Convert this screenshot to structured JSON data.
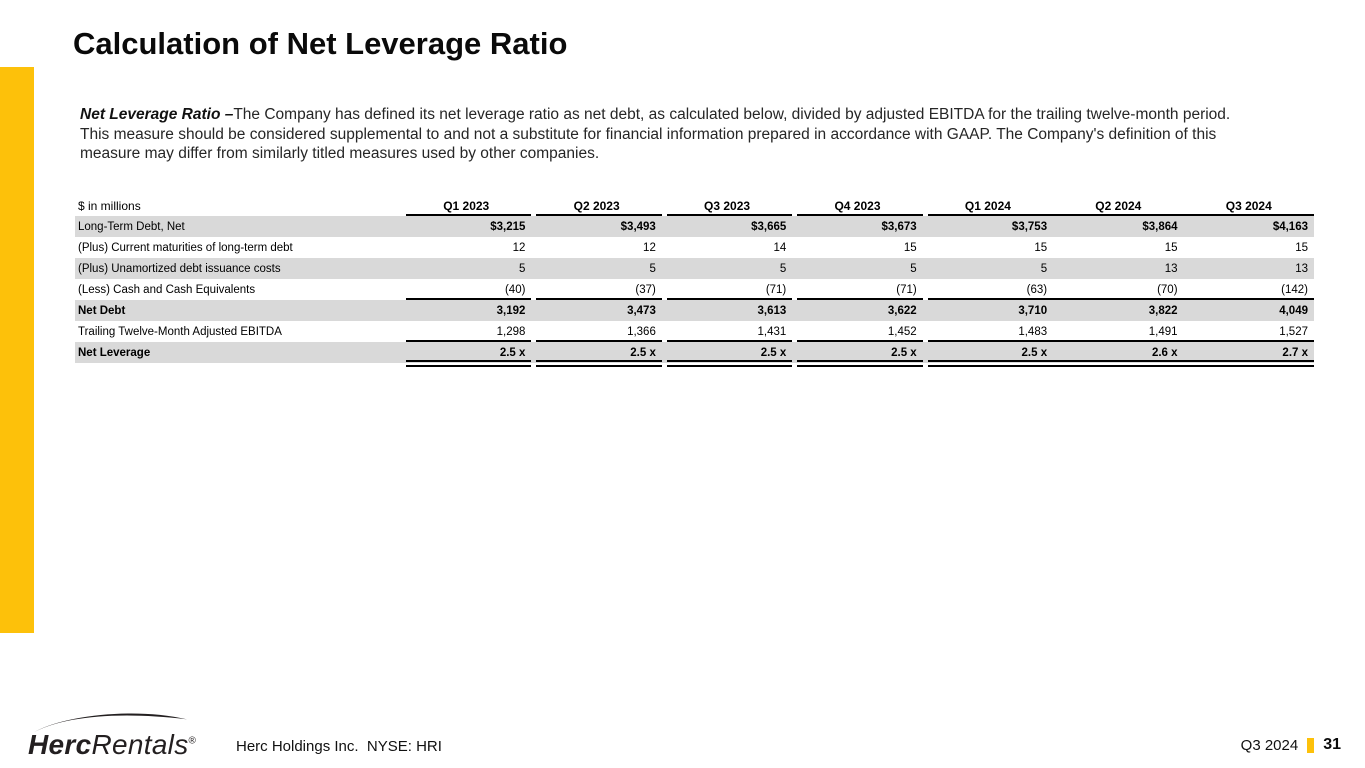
{
  "colors": {
    "gold": "#FDC10A",
    "logo_dark": "#231F20",
    "row_shade": "#D9D9D9"
  },
  "header": {
    "title": "Calculation of Net Leverage Ratio"
  },
  "description": {
    "lead": "Net Leverage Ratio –",
    "body": "The Company has defined its net leverage ratio as net debt, as calculated below, divided by adjusted EBITDA for the trailing twelve-month period.  This measure should be considered supplemental to and not a substitute for financial information prepared in accordance with GAAP. The Company's definition of this measure may differ from similarly titled measures used by other companies."
  },
  "table": {
    "unit_label": "$ in millions",
    "columns": [
      "Q1 2023",
      "Q2 2023",
      "Q3 2023",
      "Q4 2023",
      "Q1 2024",
      "Q2 2024",
      "Q3 2024"
    ],
    "rows": [
      {
        "label": "Long-Term Debt, Net",
        "values": [
          "$3,215",
          "$3,493",
          "$3,665",
          "$3,673",
          "$3,753",
          "$3,864",
          "$4,163"
        ],
        "label_bold": false,
        "values_bold": true,
        "shaded": true,
        "rule": "none"
      },
      {
        "label": "(Plus) Current maturities of long-term debt",
        "values": [
          "12",
          "12",
          "14",
          "15",
          "15",
          "15",
          "15"
        ],
        "label_bold": false,
        "values_bold": false,
        "shaded": false,
        "rule": "none"
      },
      {
        "label": "(Plus) Unamortized debt issuance costs",
        "values": [
          "5",
          "5",
          "5",
          "5",
          "5",
          "13",
          "13"
        ],
        "label_bold": false,
        "values_bold": false,
        "shaded": true,
        "rule": "none"
      },
      {
        "label": "(Less) Cash and Cash Equivalents",
        "values": [
          "(40)",
          "(37)",
          "(71)",
          "(71)",
          "(63)",
          "(70)",
          "(142)"
        ],
        "label_bold": false,
        "values_bold": false,
        "shaded": false,
        "rule": "single"
      },
      {
        "label": "Net Debt",
        "values": [
          "3,192",
          "3,473",
          "3,613",
          "3,622",
          "3,710",
          "3,822",
          "4,049"
        ],
        "label_bold": true,
        "values_bold": true,
        "shaded": true,
        "rule": "none"
      },
      {
        "label": "Trailing Twelve-Month Adjusted EBITDA",
        "values": [
          "1,298",
          "1,366",
          "1,431",
          "1,452",
          "1,483",
          "1,491",
          "1,527"
        ],
        "label_bold": false,
        "values_bold": false,
        "shaded": false,
        "rule": "single"
      },
      {
        "label": "Net Leverage",
        "values": [
          "2.5 x",
          "2.5 x",
          "2.5 x",
          "2.5 x",
          "2.5 x",
          "2.6 x",
          "2.7 x"
        ],
        "label_bold": true,
        "values_bold": true,
        "shaded": true,
        "rule": "double"
      }
    ]
  },
  "footer": {
    "logo": {
      "herc": "Herc",
      "rentals": "Rentals",
      "reg": "®"
    },
    "company_line": "Herc Holdings Inc.  NYSE: HRI",
    "quarter": "Q3 2024",
    "page": "31"
  }
}
